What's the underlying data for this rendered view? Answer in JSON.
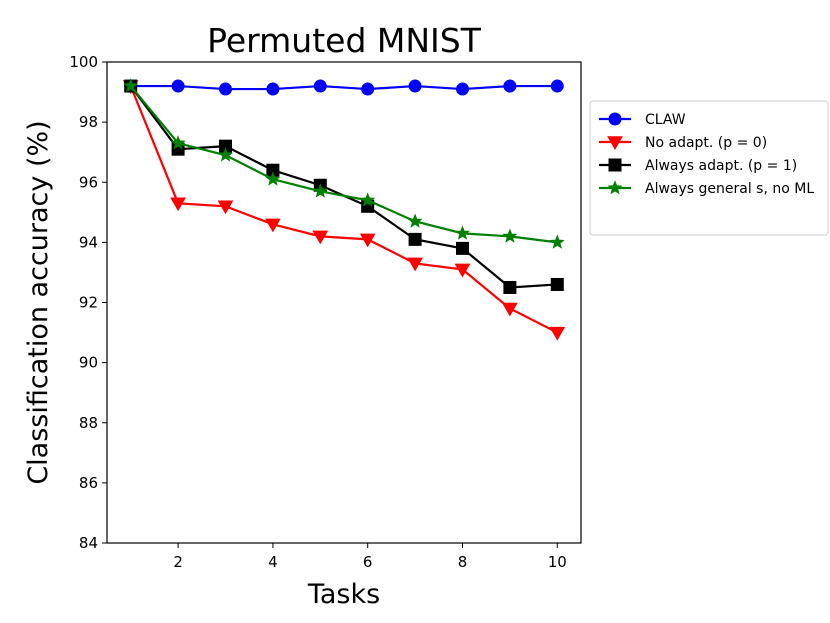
{
  "chart_data": {
    "type": "line",
    "title": "Permuted MNIST",
    "xlabel": "Tasks",
    "ylabel": "Classification accuracy (%)",
    "x": [
      1,
      2,
      3,
      4,
      5,
      6,
      7,
      8,
      9,
      10
    ],
    "xlim": [
      0.5,
      10.5
    ],
    "ylim": [
      84,
      100
    ],
    "xticks": [
      2,
      4,
      6,
      8,
      10
    ],
    "yticks": [
      84,
      86,
      88,
      90,
      92,
      94,
      96,
      98,
      100
    ],
    "grid": false,
    "legend_position": "right, outside plot",
    "series": [
      {
        "name": "CLAW",
        "color": "#0000ff",
        "marker": "circle",
        "values": [
          99.2,
          99.2,
          99.1,
          99.1,
          99.2,
          99.1,
          99.2,
          99.1,
          99.2,
          99.2
        ]
      },
      {
        "name": "No adapt. (p = 0)",
        "color": "#ff0000",
        "marker": "triangle-down",
        "values": [
          99.2,
          95.3,
          95.2,
          94.6,
          94.2,
          94.1,
          93.3,
          93.1,
          91.8,
          91.0
        ]
      },
      {
        "name": "Always adapt. (p = 1)",
        "color": "#000000",
        "marker": "square",
        "values": [
          99.2,
          97.1,
          97.2,
          96.4,
          95.9,
          95.2,
          94.1,
          93.8,
          92.5,
          92.6
        ]
      },
      {
        "name": "Always general s, no ML",
        "color": "#008000",
        "marker": "star",
        "values": [
          99.2,
          97.3,
          96.9,
          96.1,
          95.7,
          95.4,
          94.7,
          94.3,
          94.2,
          94.0
        ]
      }
    ]
  }
}
